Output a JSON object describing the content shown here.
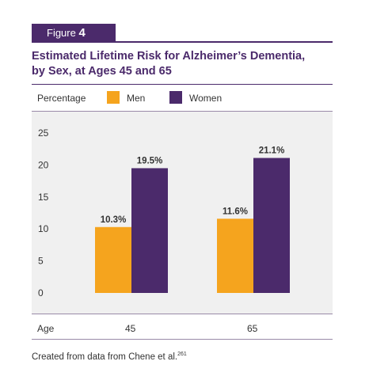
{
  "figure_label": "Figure",
  "figure_number": "4",
  "title_line1": "Estimated Lifetime Risk for Alzheimer’s Dementia,",
  "title_line2": "by Sex, at Ages 45 and 65",
  "legend_title": "Percentage",
  "source_text": "Created from data from Chene et al.",
  "source_ref": "261",
  "colors": {
    "men": "#f5a41e",
    "women": "#4b2a6b",
    "plot_bg": "#f0f0f0",
    "brand": "#4b2a6b"
  },
  "chart_data": {
    "type": "bar",
    "xlabel": "Age",
    "ylabel": "",
    "categories": [
      "45",
      "65"
    ],
    "series": [
      {
        "name": "Men",
        "values": [
          10.3,
          11.6
        ],
        "labels": [
          "10.3%",
          "11.6%"
        ]
      },
      {
        "name": "Women",
        "values": [
          19.5,
          21.1
        ],
        "labels": [
          "19.5%",
          "21.1%"
        ]
      }
    ],
    "ylim": [
      0,
      25
    ],
    "yticks": [
      0,
      5,
      10,
      15,
      20,
      25
    ],
    "grid": false,
    "legend": "top-left"
  }
}
